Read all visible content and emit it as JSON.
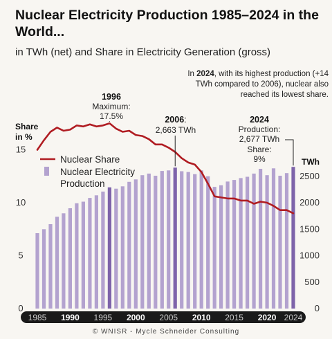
{
  "header": {
    "title": "Nuclear Electricity Production 1985–2024 in the World...",
    "subtitle": "in TWh (net) and Share in Electricity Generation (gross)"
  },
  "note": {
    "prefix": "In ",
    "year": "2024",
    "suffix": ", with its highest production (+14 TWh compared to 2006), nuclear also reached its lowest share."
  },
  "footer": "© WNISR - Mycle Schneider Consulting",
  "colors": {
    "bar": "#b3a2cf",
    "bar_highlight": "#7e64aa",
    "line": "#b01c22",
    "axis_band": "#1a1a1a",
    "background": "#f8f6f2"
  },
  "chart_data": {
    "type": "bar",
    "x": [
      1985,
      1986,
      1987,
      1988,
      1989,
      1990,
      1991,
      1992,
      1993,
      1994,
      1995,
      1996,
      1997,
      1998,
      1999,
      2000,
      2001,
      2002,
      2003,
      2004,
      2005,
      2006,
      2007,
      2008,
      2009,
      2010,
      2011,
      2012,
      2013,
      2014,
      2015,
      2016,
      2017,
      2018,
      2019,
      2020,
      2021,
      2022,
      2023,
      2024
    ],
    "xtick_labels": [
      "1985",
      "1990",
      "1995",
      "2000",
      "2005",
      "2010",
      "2015",
      "2020",
      "2024"
    ],
    "xtick_values": [
      1985,
      1990,
      1995,
      2000,
      2005,
      2010,
      2015,
      2020,
      2024
    ],
    "xtick_bold": [
      "1990",
      "2000",
      "2010",
      "2020"
    ],
    "series": [
      {
        "name": "Nuclear Electricity Production",
        "type": "bar",
        "axis": "right",
        "unit": "TWh",
        "values": [
          1425,
          1500,
          1595,
          1735,
          1800,
          1895,
          1990,
          2020,
          2090,
          2140,
          2210,
          2290,
          2265,
          2310,
          2395,
          2440,
          2520,
          2550,
          2510,
          2600,
          2610,
          2663,
          2595,
          2580,
          2540,
          2610,
          2500,
          2300,
          2330,
          2400,
          2430,
          2465,
          2490,
          2550,
          2640,
          2520,
          2650,
          2510,
          2560,
          2677
        ],
        "highlight_years": [
          1996,
          2006,
          2024
        ]
      },
      {
        "name": "Nuclear Share",
        "type": "line",
        "axis": "left",
        "unit": "%",
        "values": [
          15.0,
          15.9,
          16.7,
          17.1,
          16.8,
          16.9,
          17.3,
          17.2,
          17.4,
          17.2,
          17.3,
          17.5,
          17.0,
          16.7,
          16.8,
          16.4,
          16.3,
          16.0,
          15.5,
          15.5,
          15.2,
          14.8,
          14.2,
          13.8,
          13.6,
          12.9,
          11.8,
          10.6,
          10.5,
          10.4,
          10.4,
          10.2,
          10.2,
          9.9,
          10.1,
          10.0,
          9.7,
          9.3,
          9.3,
          9.0
        ]
      }
    ],
    "y_left": {
      "label": "Share in %",
      "ylim": [
        0,
        15
      ],
      "ticks": [
        0,
        5,
        10,
        15
      ]
    },
    "y_right": {
      "label": "TWh",
      "ylim": [
        0,
        3000
      ],
      "ticks": [
        0,
        500,
        1000,
        1500,
        2000,
        2500
      ]
    },
    "legend": [
      {
        "label": "Nuclear Share",
        "type": "line"
      },
      {
        "label": "Nuclear Electricity Production",
        "type": "bar"
      }
    ],
    "legend_position": "upper-left",
    "grid": false,
    "annotations": [
      {
        "id": "a1996",
        "year_label": "1996",
        "lines": [
          "Maximum:",
          "17.5%"
        ]
      },
      {
        "id": "a2006",
        "year_label": "2006",
        "year_suffix": ":",
        "lines": [
          "2,663 TWh"
        ]
      },
      {
        "id": "a2024",
        "year_label": "2024",
        "lines": [
          "Production:",
          "2,677 TWh",
          "Share:",
          "9%"
        ]
      }
    ]
  }
}
